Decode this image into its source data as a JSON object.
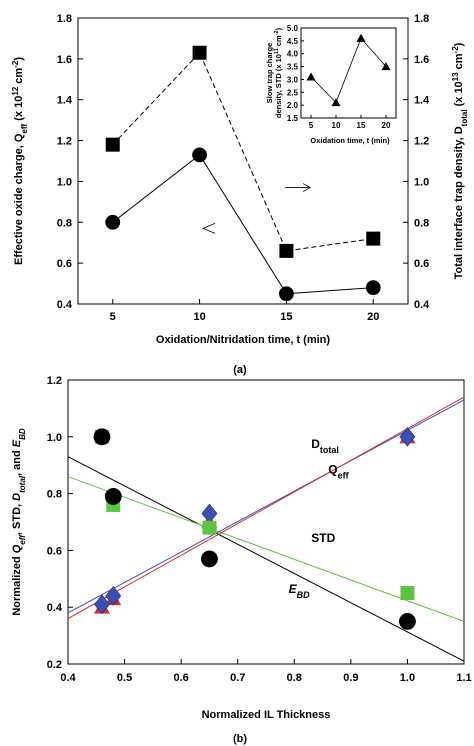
{
  "chart_data": [
    {
      "type": "line",
      "panel_label": "(a)",
      "xlabel": "Oxidation/Nitridation time, t (min)",
      "ylabel_left": "Effective oxide charge, Q",
      "ylabel_left_sub": "eff",
      "ylabel_left_tail": " (x 10",
      "ylabel_left_exp": "12",
      "ylabel_left_unit": " cm",
      "ylabel_left_unit_exp": "-2",
      "ylabel_left_end": ")",
      "ylabel_right": "Total interface trap density, D",
      "ylabel_right_sub": "total",
      "ylabel_right_tail": " (x 10",
      "ylabel_right_exp": "13",
      "ylabel_right_unit": " cm",
      "ylabel_right_unit_exp": "-2",
      "ylabel_right_end": ")",
      "x_ticks": [
        "5",
        "10",
        "15",
        "20"
      ],
      "y_left_ticks": [
        "0.4",
        "0.6",
        "0.8",
        "1.0",
        "1.2",
        "1.4",
        "1.6",
        "1.8"
      ],
      "y_right_ticks": [
        "0.4",
        "0.6",
        "0.8",
        "1.0",
        "1.2",
        "1.4",
        "1.6",
        "1.8"
      ],
      "xlim": [
        3,
        22
      ],
      "ylim": [
        0.4,
        1.8
      ],
      "series": [
        {
          "marker": "circle",
          "line": "solid",
          "axis": "left",
          "x": [
            5,
            10,
            15,
            20
          ],
          "y": [
            0.8,
            1.13,
            0.45,
            0.48
          ]
        },
        {
          "marker": "square",
          "line": "dashed",
          "axis": "right",
          "x": [
            5,
            10,
            15,
            20
          ],
          "y": [
            1.18,
            1.63,
            0.66,
            0.72
          ]
        }
      ],
      "annotations": [
        {
          "text": "<",
          "points_to": "left",
          "x": 10.2,
          "y": 0.77
        },
        {
          "text": "-->",
          "points_to": "right",
          "x": 15.5,
          "y": 0.97
        }
      ],
      "inset": {
        "type": "line",
        "xlabel": "Oxidation time, t (min)",
        "ylabel_line1": "Slow trap charge",
        "ylabel_line2": "density, STD (x 10",
        "ylabel_exp": "11",
        "ylabel_unit": " cm",
        "ylabel_unit_exp": "-2",
        "ylabel_end": ")",
        "x_ticks": [
          "5",
          "10",
          "15",
          "20"
        ],
        "y_ticks": [
          "1.5",
          "2.0",
          "2.5",
          "3.0",
          "3.5",
          "4.0",
          "4.5",
          "5.0"
        ],
        "xlim": [
          3,
          22
        ],
        "ylim": [
          1.5,
          5.0
        ],
        "series": [
          {
            "marker": "triangle",
            "line": "solid",
            "x": [
              5,
              10,
              15,
              20
            ],
            "y": [
              3.1,
              2.1,
              4.6,
              3.5
            ]
          }
        ]
      }
    },
    {
      "type": "scatter",
      "panel_label": "(b)",
      "xlabel": "Normalized IL Thickness",
      "ylabel_parts": [
        "Normalized ",
        "Q",
        "eff",
        ", STD, ",
        "D",
        "total",
        ", and ",
        "E",
        "BD"
      ],
      "x_ticks": [
        "0.4",
        "0.5",
        "0.6",
        "0.7",
        "0.8",
        "0.9",
        "1.0",
        "1.1"
      ],
      "y_ticks": [
        "0.2",
        "0.4",
        "0.6",
        "0.8",
        "1.0",
        "1.2"
      ],
      "xlim": [
        0.4,
        1.1
      ],
      "ylim": [
        0.2,
        1.2
      ],
      "series": [
        {
          "label": "E_BD",
          "marker": "circle",
          "color": "#000000",
          "x": [
            0.46,
            0.48,
            0.65,
            1.0
          ],
          "y": [
            1.0,
            0.79,
            0.57,
            0.35
          ],
          "fit": [
            [
              0.4,
              0.93
            ],
            [
              1.1,
              0.21
            ]
          ]
        },
        {
          "label": "STD",
          "marker": "square",
          "color": "#5cc440",
          "x": [
            0.46,
            0.48,
            0.65,
            1.0
          ],
          "y": [
            1.0,
            0.76,
            0.68,
            0.45
          ],
          "fit": [
            [
              0.4,
              0.86
            ],
            [
              1.1,
              0.35
            ]
          ]
        },
        {
          "label": "D_total",
          "marker": "diamond",
          "color": "#3a50b8",
          "x": [
            0.46,
            0.48,
            0.65,
            1.0
          ],
          "y": [
            0.41,
            0.44,
            0.73,
            1.0
          ],
          "fit": [
            [
              0.4,
              0.38
            ],
            [
              1.1,
              1.13
            ]
          ]
        },
        {
          "label": "Q_eff",
          "marker": "triangle",
          "color": "#e02a2a",
          "x": [
            0.46,
            0.48,
            0.65,
            1.0
          ],
          "y": [
            0.4,
            0.43,
            0.7,
            1.0
          ],
          "fit": [
            [
              0.4,
              0.36
            ],
            [
              1.1,
              1.14
            ]
          ]
        }
      ],
      "line_labels": [
        {
          "base": "D",
          "sub": "total",
          "x": 0.83,
          "y": 0.96
        },
        {
          "base": "Q",
          "sub": "eff",
          "x": 0.86,
          "y": 0.87
        },
        {
          "base": "STD",
          "sub": "",
          "x": 0.83,
          "y": 0.63
        },
        {
          "base": "E",
          "sub": "BD",
          "x": 0.79,
          "y": 0.45
        }
      ]
    }
  ]
}
